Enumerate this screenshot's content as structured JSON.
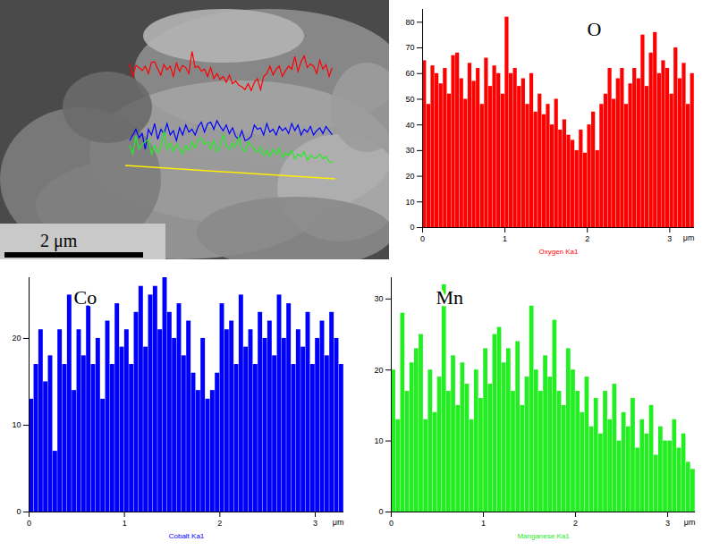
{
  "image": {
    "scale_bar": "2 μm"
  },
  "chart_data": [
    {
      "type": "histogram",
      "title": "O",
      "xlabel": "Oxygen Ka1",
      "x_unit": "μm",
      "color": "#ff0000",
      "bins": [
        0,
        0.05,
        0.1,
        0.15,
        0.2,
        0.25,
        0.3,
        0.35,
        0.4,
        0.45,
        0.5,
        0.55,
        0.6,
        0.65,
        0.7,
        0.75,
        0.8,
        0.85,
        0.9,
        0.95,
        1,
        1.05,
        1.1,
        1.15,
        1.2,
        1.25,
        1.3,
        1.35,
        1.4,
        1.45,
        1.5,
        1.55,
        1.6,
        1.65,
        1.7,
        1.75,
        1.8,
        1.85,
        1.9,
        1.95,
        2,
        2.05,
        2.1,
        2.15,
        2.2,
        2.25,
        2.3,
        2.35,
        2.4,
        2.45,
        2.5,
        2.55,
        2.6,
        2.65,
        2.7,
        2.75,
        2.8,
        2.85,
        2.9,
        2.95,
        3,
        3.05,
        3.1,
        3.15,
        3.2,
        3.25,
        3.3
      ],
      "values": [
        65,
        48,
        63,
        60,
        56,
        62,
        52,
        67,
        68,
        58,
        50,
        64,
        57,
        62,
        48,
        66,
        55,
        63,
        60,
        52,
        82,
        60,
        62,
        55,
        58,
        48,
        60,
        45,
        52,
        44,
        48,
        40,
        50,
        38,
        42,
        36,
        34,
        30,
        38,
        29,
        40,
        45,
        30,
        48,
        52,
        62,
        50,
        58,
        62,
        48,
        56,
        62,
        58,
        75,
        55,
        68,
        76,
        60,
        65,
        62,
        52,
        70,
        58,
        64,
        48,
        60
      ],
      "xlim": [
        0,
        3.3
      ],
      "xticks": [
        0,
        1,
        2,
        3
      ],
      "ylim": [
        0,
        85
      ],
      "yticks": [
        0,
        10,
        20,
        30,
        40,
        50,
        60,
        70,
        80
      ]
    },
    {
      "type": "histogram",
      "title": "Co",
      "xlabel": "Cobalt Ka1",
      "x_unit": "μm",
      "color": "#0000ff",
      "bins": [
        0,
        0.05,
        0.1,
        0.15,
        0.2,
        0.25,
        0.3,
        0.35,
        0.4,
        0.45,
        0.5,
        0.55,
        0.6,
        0.65,
        0.7,
        0.75,
        0.8,
        0.85,
        0.9,
        0.95,
        1,
        1.05,
        1.1,
        1.15,
        1.2,
        1.25,
        1.3,
        1.35,
        1.4,
        1.45,
        1.5,
        1.55,
        1.6,
        1.65,
        1.7,
        1.75,
        1.8,
        1.85,
        1.9,
        1.95,
        2,
        2.05,
        2.1,
        2.15,
        2.2,
        2.25,
        2.3,
        2.35,
        2.4,
        2.45,
        2.5,
        2.55,
        2.6,
        2.65,
        2.7,
        2.75,
        2.8,
        2.85,
        2.9,
        2.95,
        3,
        3.05,
        3.1,
        3.15,
        3.2,
        3.25,
        3.3
      ],
      "values": [
        13,
        17,
        21,
        15,
        18,
        7,
        21,
        17,
        25,
        14,
        21,
        18,
        25,
        17,
        20,
        13,
        22,
        17,
        24,
        19,
        21,
        17,
        23,
        26,
        19,
        25,
        26,
        21,
        27,
        23,
        20,
        24,
        18,
        22,
        16,
        14,
        20,
        13,
        14,
        16,
        24,
        21,
        22,
        17,
        25,
        19,
        21,
        17,
        23,
        20,
        22,
        18,
        25,
        20,
        24,
        17,
        21,
        19,
        23,
        17,
        20,
        22,
        18,
        23,
        20,
        17
      ],
      "xlim": [
        0,
        3.3
      ],
      "xticks": [
        0,
        1,
        2,
        3
      ],
      "ylim": [
        0,
        27
      ],
      "yticks": [
        0,
        10,
        20
      ]
    },
    {
      "type": "histogram",
      "title": "Mn",
      "xlabel": "Manganese Ka1",
      "x_unit": "μm",
      "color": "#22ee22",
      "bins": [
        0,
        0.05,
        0.1,
        0.15,
        0.2,
        0.25,
        0.3,
        0.35,
        0.4,
        0.45,
        0.5,
        0.55,
        0.6,
        0.65,
        0.7,
        0.75,
        0.8,
        0.85,
        0.9,
        0.95,
        1,
        1.05,
        1.1,
        1.15,
        1.2,
        1.25,
        1.3,
        1.35,
        1.4,
        1.45,
        1.5,
        1.55,
        1.6,
        1.65,
        1.7,
        1.75,
        1.8,
        1.85,
        1.9,
        1.95,
        2,
        2.05,
        2.1,
        2.15,
        2.2,
        2.25,
        2.3,
        2.35,
        2.4,
        2.45,
        2.5,
        2.55,
        2.6,
        2.65,
        2.7,
        2.75,
        2.8,
        2.85,
        2.9,
        2.95,
        3,
        3.05,
        3.1,
        3.15,
        3.2,
        3.25,
        3.3
      ],
      "values": [
        20,
        13,
        28,
        17,
        21,
        23,
        25,
        13,
        20,
        14,
        19,
        32,
        17,
        22,
        15,
        21,
        18,
        13,
        20,
        16,
        23,
        18,
        25,
        26,
        21,
        23,
        17,
        24,
        15,
        19,
        29,
        20,
        17,
        22,
        19,
        27,
        17,
        15,
        23,
        20,
        17,
        14,
        19,
        12,
        16,
        11,
        17,
        13,
        18,
        10,
        14,
        12,
        16,
        9,
        13,
        11,
        15,
        8,
        12,
        10,
        10,
        13,
        9,
        11,
        7,
        6
      ],
      "xlim": [
        0,
        3.3
      ],
      "xticks": [
        0,
        1,
        2,
        3
      ],
      "ylim": [
        0,
        33
      ],
      "yticks": [
        0,
        10,
        20,
        30
      ]
    }
  ]
}
